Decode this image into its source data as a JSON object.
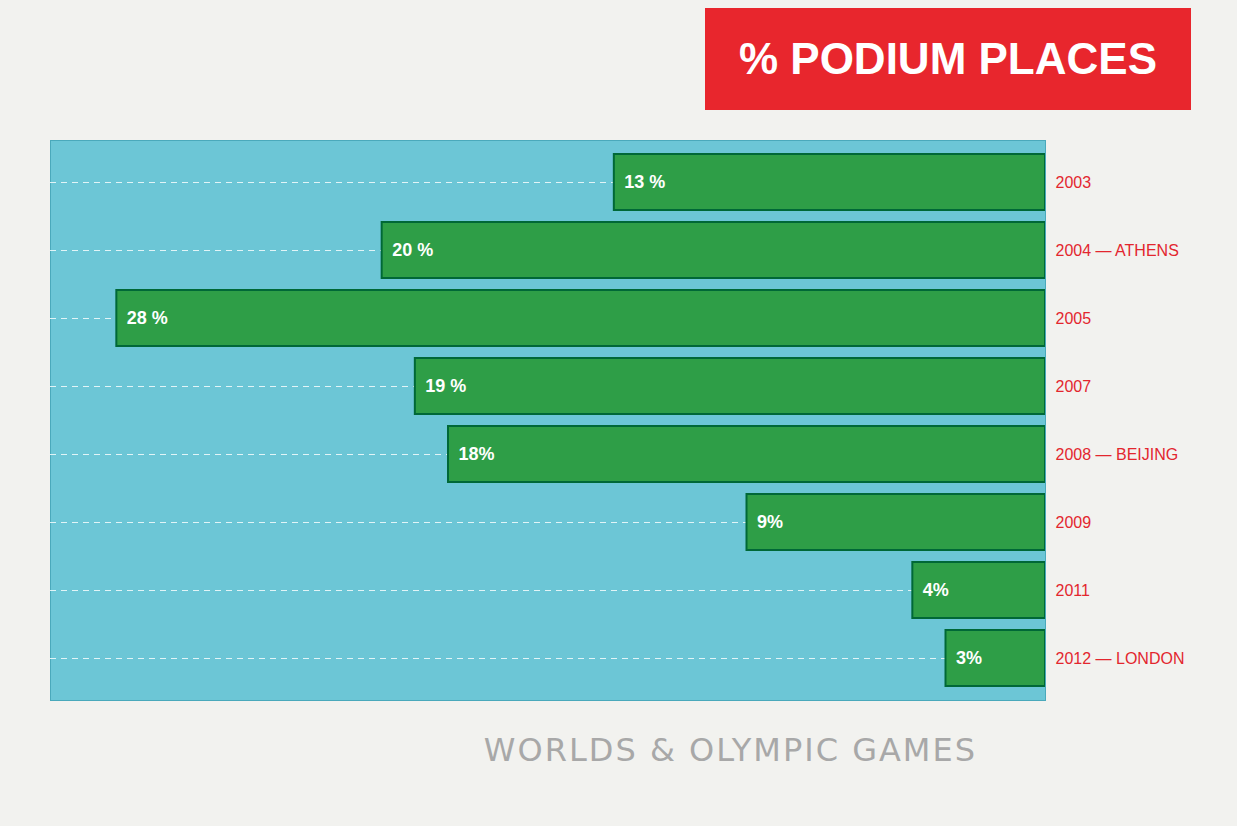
{
  "chart_data": {
    "type": "bar",
    "title": "% PODIUM PLACES",
    "ylabel": "WORLDS & OLYMPIC GAMES",
    "categories": [
      "2003",
      "2004 — ATHENS",
      "2005",
      "2007",
      "2008 — BEIJING",
      "2009",
      "2011",
      "2012 — LONDON"
    ],
    "values": [
      13,
      20,
      28,
      19,
      18,
      9,
      4,
      3
    ],
    "value_labels": [
      "13 %",
      "20 %",
      "28 %",
      "19 %",
      "18%",
      "9%",
      "4%",
      "3%"
    ],
    "color": "#2e9e47",
    "orientation": "horizontal",
    "data_labels": true,
    "tick_labels": "y",
    "xlim": [
      0,
      30
    ],
    "xticks": []
  }
}
